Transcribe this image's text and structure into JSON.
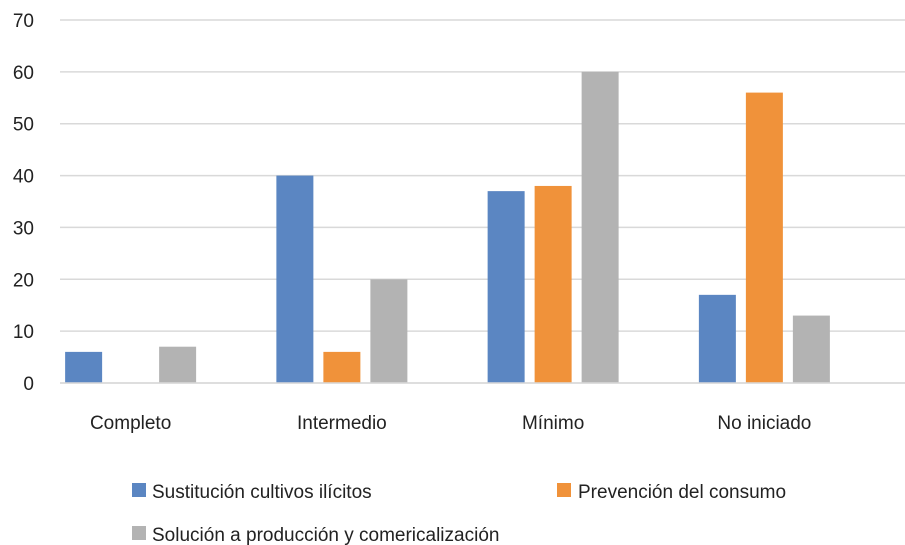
{
  "chart_data": {
    "type": "bar",
    "categories": [
      "Completo",
      "Intermedio",
      "Mínimo",
      "No iniciado"
    ],
    "series": [
      {
        "name": "Sustitución cultivos ilícitos",
        "color": "#5b86c2",
        "values": [
          6,
          40,
          37,
          17
        ]
      },
      {
        "name": "Prevención del consumo",
        "color": "#f0923a",
        "values": [
          0,
          6,
          38,
          56
        ]
      },
      {
        "name": "Solución a producción y comericalización",
        "color": "#b3b3b3",
        "values": [
          7,
          20,
          60,
          13
        ]
      }
    ],
    "yticks": [
      "0",
      "10",
      "20",
      "30",
      "40",
      "50",
      "60",
      "70"
    ],
    "ylim": [
      0,
      70
    ],
    "grid": true,
    "legend_position": "bottom"
  }
}
